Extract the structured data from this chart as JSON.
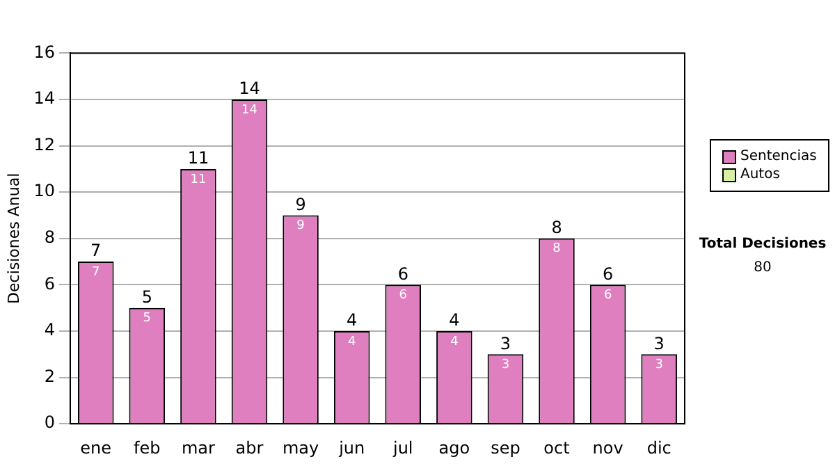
{
  "chart_data": {
    "type": "bar",
    "ylabel": "Decisiones Anual",
    "categories": [
      "ene",
      "feb",
      "mar",
      "abr",
      "may",
      "jun",
      "jul",
      "ago",
      "sep",
      "oct",
      "nov",
      "dic"
    ],
    "series": [
      {
        "name": "Sentencias",
        "color": "#df7fbf",
        "values": [
          7,
          5,
          11,
          14,
          9,
          4,
          6,
          4,
          3,
          8,
          6,
          3
        ],
        "value_labels": [
          "7",
          "5",
          "11",
          "14",
          "9",
          "4",
          "6",
          "4",
          "3",
          "8",
          "6",
          "3"
        ]
      },
      {
        "name": "Autos",
        "color": "#d9f0a3",
        "values": [
          0,
          0,
          0,
          0,
          0,
          0,
          0,
          0,
          0,
          0,
          0,
          0
        ],
        "value_labels": [
          null,
          null,
          null,
          null,
          null,
          null,
          null,
          null,
          null,
          null,
          null,
          null
        ]
      }
    ],
    "stacked": true,
    "totals": [
      "7",
      "5",
      "11",
      "14",
      "9",
      "4",
      "6",
      "4",
      "3",
      "8",
      "6",
      "3"
    ],
    "ylim": [
      0,
      16
    ],
    "yticks": [
      0,
      2,
      4,
      6,
      8,
      10,
      12,
      14,
      16
    ],
    "grid": "y",
    "legend": "right",
    "annotations": [
      "Total Decisiones",
      "80"
    ]
  }
}
